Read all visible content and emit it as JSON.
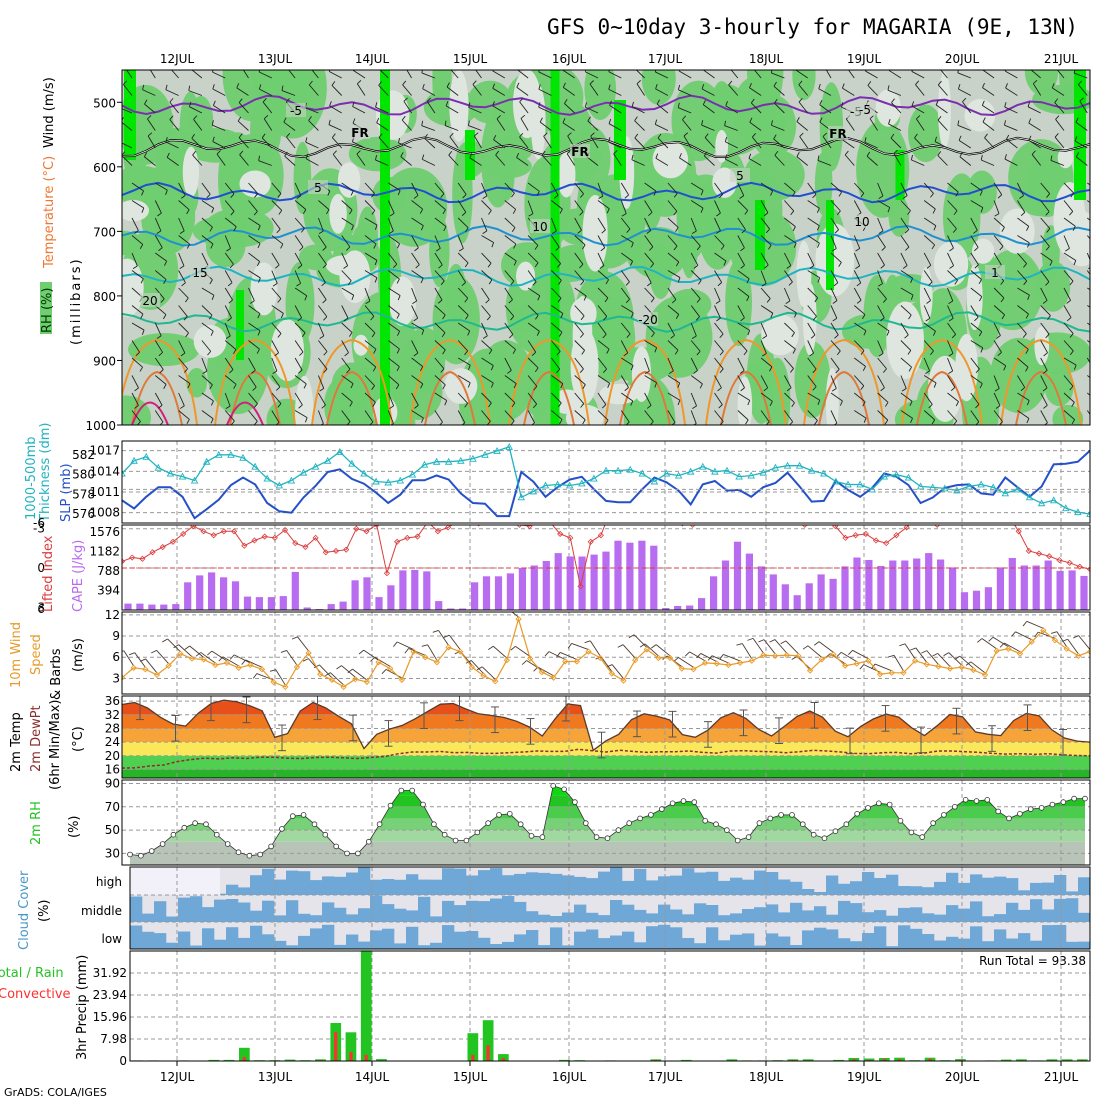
{
  "title": "GFS 0~10day 3-hourly for MAGARIA (9E, 13N)",
  "credit": "GrADS: COLA/IGES",
  "run_total_label": "Run Total = 93.38",
  "dates": [
    "12JUL",
    "13JUL",
    "14JUL",
    "15JUL",
    "16JUL",
    "17JUL",
    "18JUL",
    "19JUL",
    "20JUL",
    "21JUL"
  ],
  "colors": {
    "rh_light": "#c8d2c8",
    "rh_mid": "#6fce6f",
    "rh_dark": "#00e600",
    "slp": "#2450c8",
    "thickness": "#20b4c0",
    "lifted": "#dc3c3c",
    "cape": "#b86cf0",
    "wind": "#e89a28",
    "temp_fill": "#f0781e",
    "dewpt": "#8b2e2e",
    "rh2m": "#22c422",
    "cloud": "#6fa8d6",
    "cloud_bg": "#e4e4ea",
    "precip_total": "#22c422",
    "precip_conv": "#ff3030"
  },
  "panel_labels": {
    "upper": [
      "RH (%)",
      "Temperature (°C)",
      "Wind (m/s)",
      "(millibars)"
    ],
    "slp": [
      "Thickness (dm)",
      "1000-500mb",
      "SLP (mb)"
    ],
    "cape": [
      "Lifted Index",
      "CAPE (J/kg)"
    ],
    "wind10": [
      "10m Wind",
      "Speed",
      "& Barbs",
      "(m/s)"
    ],
    "temp2m": [
      "2m Temp",
      "2m DewPt",
      "(6hr Min/Max)",
      "(°C)"
    ],
    "rh2m": [
      "2m RH",
      "(%)"
    ],
    "cloud": [
      "Cloud Cover",
      "(%)"
    ],
    "precip": [
      "Total / Rain",
      "Convective",
      "3hr Precip (mm)"
    ]
  },
  "upper_ticks": [
    "500",
    "600",
    "700",
    "800",
    "900",
    "1000"
  ],
  "upper_isotherms": [
    "-5",
    "FR",
    "FR",
    "FR",
    "-5",
    "-5",
    "5",
    "5",
    "10",
    "10",
    "15",
    "1",
    "20",
    "-20"
  ],
  "cloud_levels": [
    "high",
    "middle",
    "low"
  ],
  "chart_data": [
    {
      "type": "heatmap",
      "name": "upper-air",
      "y_unit": "millibars",
      "ylim": [
        1000,
        450
      ],
      "isotherms_C": [
        -5,
        0,
        5,
        10,
        15,
        20
      ],
      "isotherm_levels_mb": [
        505,
        570,
        640,
        707,
        770,
        840
      ]
    },
    {
      "type": "line",
      "name": "slp-thickness",
      "ylim_slp": [
        1008,
        1017
      ],
      "yticks_slp": [
        1008,
        1011,
        1014,
        1017
      ],
      "yticks_thickness": [
        576,
        578,
        580,
        582
      ],
      "series": [
        {
          "name": "SLP",
          "values": [
            1009.8,
            1008.6,
            1010.3,
            1011.7,
            1011.7,
            1010.3,
            1007.2,
            1008.5,
            1009.9,
            1012,
            1013.1,
            1012.1,
            1009.4,
            1008.2,
            1008,
            1010.2,
            1011.9,
            1013.9,
            1014.3,
            1012.9,
            1012.2,
            1010.9,
            1009.4,
            1010.6,
            1012.7,
            1012.7,
            1013.4,
            1012.8,
            1010.8,
            1009.4,
            1009.3,
            1007.5,
            1007.5,
            1013.9,
            1012.5,
            1010.3,
            1011.7,
            1012.8,
            1013.2,
            1011.4,
            1009.7,
            1009.5,
            1009.5,
            1011.4,
            1013.1,
            1012.4,
            1011.2,
            1009.2,
            1012.1,
            1012.6,
            1011.2,
            1011.3,
            1010.3,
            1011.7,
            1012.3,
            1013.8,
            1011.8,
            1009.6,
            1009.7,
            1012.6,
            1011.3,
            1010.3,
            1011.6,
            1013.7,
            1013.2,
            1012,
            1009.4,
            1010.2,
            1011.6,
            1012,
            1012.1,
            1010.8,
            1010.6,
            1013.1,
            1011.7,
            1010.3,
            1011.8,
            1015,
            1015.1,
            1015.4,
            1017
          ]
        },
        {
          "name": "Thickness",
          "values": [
            580.1,
            581.4,
            581.8,
            580.7,
            580.1,
            579.8,
            579.4,
            581.3,
            582,
            582,
            581.7,
            580.8,
            579.6,
            578.9,
            579.4,
            580.2,
            580.8,
            581.4,
            582.3,
            581.1,
            580.1,
            579.3,
            579.2,
            579.4,
            580,
            581,
            581.3,
            581.3,
            581.4,
            581.6,
            582,
            582.4,
            582.8,
            577.7,
            578.3,
            578.9,
            579,
            578.9,
            579.1,
            579.6,
            580.4,
            580.4,
            580.5,
            580.1,
            579.3,
            580.1,
            579.9,
            580.3,
            580.8,
            580.3,
            580.4,
            579.8,
            579.9,
            580.2,
            580.7,
            580.9,
            580.9,
            580.4,
            580.1,
            579.3,
            579,
            579,
            578.5,
            579.8,
            580,
            579.7,
            578.8,
            578.7,
            578.6,
            578.4,
            578.8,
            579,
            578.7,
            578.1,
            578.5,
            577.7,
            577.1,
            577.4,
            576.6,
            576.2,
            576
          ]
        }
      ]
    },
    {
      "type": "bar",
      "name": "cape-lifted-index",
      "yticks_cape": [
        394,
        788,
        1182,
        1576
      ],
      "yticks_li": [
        6,
        3,
        0,
        -3,
        -6
      ],
      "series": [
        {
          "name": "CAPE",
          "values": [
            130,
            130,
            110,
            110,
            120,
            560,
            700,
            760,
            660,
            580,
            270,
            260,
            260,
            280,
            770,
            50,
            20,
            120,
            170,
            600,
            660,
            260,
            500,
            800,
            810,
            780,
            180,
            30,
            30,
            560,
            680,
            680,
            740,
            850,
            900,
            990,
            1150,
            1080,
            1080,
            1120,
            1180,
            1400,
            1360,
            1400,
            1300,
            40,
            80,
            90,
            240,
            680,
            1000,
            1380,
            1140,
            880,
            720,
            520,
            300,
            540,
            720,
            630,
            880,
            1060,
            1010,
            890,
            1000,
            1000,
            1040,
            1150,
            1020,
            860,
            360,
            390,
            460,
            860,
            1050,
            900,
            900,
            1000,
            790,
            800,
            690
          ]
        },
        {
          "name": "Lifted Index",
          "values": [
            -0.5,
            -0.8,
            -0.7,
            -1.2,
            -1.6,
            -2.0,
            -2.6,
            -3.2,
            -2.8,
            -2.5,
            -2.8,
            -2.8,
            -1.7,
            -2.1,
            -2.4,
            -2.3,
            -2.9,
            -1.9,
            -1.6,
            -2.3,
            -1.2,
            -1.3,
            -1.4,
            -3.0,
            -2.8,
            -3.3,
            0.4,
            -2.0,
            -2.3,
            -2.4,
            -3.5,
            -2.8,
            -3.1,
            -3.6,
            -3.6,
            -3.4,
            -4.3,
            -4.5,
            -3.5,
            -3.3,
            -3.2,
            -3.7,
            -3.5,
            -2.6,
            -2.3,
            1.4,
            -2.0,
            -2.5,
            -4.5,
            -4.5,
            -4.1,
            -4.2,
            -4.4,
            -4.4,
            -4.0,
            -3.4,
            -3.3,
            -4.4,
            -4.4,
            -3.7,
            -4.2,
            -3.9,
            -4.4,
            -4.5,
            -4.2,
            -3.8,
            -3.7,
            -3.3,
            -3.8,
            -4.3,
            -3.2,
            -2.3,
            -2.5,
            -2.6,
            -2.1,
            -1.9,
            -2.5,
            -3.1,
            -3.9,
            -3.9,
            -3.3,
            -3.9,
            -4.3,
            -4.4,
            -4.6,
            -4.0,
            -3.8,
            -4.0,
            -2.8,
            -1.3,
            -1.1,
            -0.9,
            -0.6,
            -0.4,
            -0.1,
            0.1
          ]
        }
      ]
    },
    {
      "type": "line",
      "name": "10m-wind",
      "y_unit": "m/s",
      "yticks": [
        3,
        6,
        9,
        12
      ],
      "series": [
        {
          "name": "Speed",
          "values": [
            3.1,
            4.5,
            4.3,
            3.5,
            4.8,
            6.5,
            5.8,
            5.7,
            4.9,
            5.2,
            4.5,
            4.9,
            4.3,
            2.5,
            1.8,
            4.6,
            6.6,
            3.6,
            2.8,
            1.8,
            2.9,
            2.5,
            5.3,
            4.4,
            2.8,
            6.8,
            6,
            5.3,
            7.4,
            6.8,
            4.6,
            3.4,
            2.6,
            5.6,
            11.4,
            5.8,
            3.9,
            3.1,
            5.4,
            5.4,
            6.8,
            5.9,
            3.7,
            2.7,
            5.6,
            7.1,
            5.9,
            5.9,
            4.4,
            4.3,
            5.2,
            5.1,
            4.9,
            5.2,
            5.5,
            6.3,
            6.2,
            6.3,
            6.2,
            4.1,
            5.7,
            6.4,
            4.8,
            5.1,
            5.5,
            3.6,
            3.8,
            3.8,
            5.5,
            5,
            4.7,
            4.4,
            4.6,
            4.2,
            3.5,
            6.9,
            7.2,
            6.5,
            8.2,
            9.8,
            8.4,
            7.2,
            6.2,
            6.8
          ]
        }
      ]
    },
    {
      "type": "area",
      "name": "2m-temperature",
      "y_unit": "°C",
      "yticks": [
        16,
        20,
        24,
        28,
        32,
        36
      ],
      "series": [
        {
          "name": "2m Temp",
          "values": [
            35,
            35.6,
            34,
            31.3,
            29.3,
            28.7,
            32.5,
            35.3,
            36.3,
            35.8,
            34.7,
            33.2,
            25.4,
            26.5,
            33.1,
            35.6,
            34,
            31.6,
            29.4,
            22.1,
            26.3,
            27.8,
            28.9,
            30.8,
            33,
            35.1,
            35.3,
            33.7,
            32.3,
            31.8,
            31.2,
            30.1,
            28.4,
            25.8,
            30.8,
            35.2,
            34.7,
            21.6,
            24.4,
            26.3,
            30.6,
            32.3,
            31.6,
            30.5,
            26.2,
            25.4,
            27.5,
            31.1,
            32.6,
            30.9,
            27.7,
            25.8,
            28.6,
            31.5,
            33.1,
            31.3,
            27.2,
            25.6,
            28.6,
            30.8,
            32.2,
            31.3,
            28.2,
            25.9,
            28.8,
            32.1,
            31.4,
            27,
            26.3,
            25.9,
            30.3,
            32.4,
            31.7,
            27.6,
            25.2,
            24.3,
            24
          ]
        },
        {
          "name": "2m DewPt",
          "values": [
            16.4,
            16.5,
            17,
            17.3,
            18.3,
            18.9,
            19.3,
            19.1,
            19.4,
            19.2,
            19.6,
            19.6,
            19.3,
            19.2,
            19.5,
            19.6,
            19.4,
            19.2,
            19.5,
            19.8,
            20.6,
            21.1,
            21.1,
            21.3,
            20.9,
            21,
            20.7,
            20.7,
            20.9,
            21.1,
            21.4,
            21.3,
            21.3,
            21.9,
            21.5,
            21.1,
            21.6,
            21.3,
            21,
            21.2,
            21.2,
            21.4,
            21,
            20.8,
            21.4,
            21.5,
            21.3,
            21.2,
            20.9,
            21.2,
            21.6,
            21.4,
            21.1,
            20.7,
            20.6,
            20.9,
            21,
            20.6,
            20.8,
            21.4,
            21.4,
            21.2,
            21,
            20.7,
            20.5,
            20.6,
            20.4,
            20.6,
            20.3,
            20.1,
            20
          ]
        }
      ]
    },
    {
      "type": "area",
      "name": "2m-rh",
      "y_unit": "%",
      "yticks": [
        30,
        50,
        70,
        90
      ],
      "series": [
        {
          "name": "2m RH",
          "values": [
            29,
            28,
            32,
            38,
            46,
            52,
            56,
            55,
            46,
            38,
            31,
            28,
            29,
            36,
            51,
            62,
            63,
            55,
            46,
            36,
            30,
            30,
            40,
            55,
            71,
            84,
            84,
            72,
            55,
            46,
            41,
            41,
            48,
            56,
            63,
            64,
            55,
            45,
            44,
            88,
            85,
            74,
            56,
            44,
            43,
            50,
            56,
            60,
            63,
            68,
            73,
            75,
            74,
            58,
            55,
            50,
            41,
            44,
            56,
            60,
            63,
            63,
            55,
            46,
            43,
            49,
            55,
            64,
            69,
            73,
            72,
            58,
            48,
            44,
            56,
            63,
            70,
            76,
            75,
            76,
            66,
            60,
            64,
            68,
            69,
            72,
            74,
            77,
            77
          ]
        }
      ]
    },
    {
      "type": "heatmap",
      "name": "cloud-cover",
      "levels": [
        "high",
        "middle",
        "low"
      ]
    },
    {
      "type": "bar",
      "name": "3hr-precip",
      "y_unit": "mm",
      "ylim": [
        0,
        39.9
      ],
      "yticks": [
        0,
        7.98,
        15.96,
        23.94,
        31.92
      ],
      "run_total_mm": 93.38,
      "series": [
        {
          "name": "Total",
          "values": [
            0.2,
            0.2,
            0.1,
            0.2,
            0.1,
            0.4,
            0.4,
            4.8,
            0.3,
            0.3,
            0.5,
            0.3,
            0.6,
            13.8,
            10.4,
            40.1,
            0.7,
            0.1,
            0.1,
            0.1,
            0.1,
            0.1,
            10.1,
            14.8,
            2.5,
            0.1,
            0.1,
            0.1,
            0.4,
            0.3,
            0.1,
            0.2,
            0.1,
            0.1,
            0.6,
            0.1,
            0.4,
            0.1,
            0.1,
            0.6,
            0.2,
            0.2,
            0.3,
            0.6,
            0.6,
            0.1,
            0.4,
            1.1,
            0.9,
            1.1,
            1.2,
            0.3,
            1.2,
            0.3,
            0.7,
            0.1,
            0.2,
            0.5,
            0.6,
            0.2,
            0.6,
            0.6,
            0.6
          ]
        },
        {
          "name": "Convective",
          "values": [
            0,
            0,
            0,
            0,
            0,
            0.1,
            0.1,
            1.4,
            0,
            0,
            0.2,
            0,
            0.3,
            10.5,
            3.3,
            2.2,
            0,
            0,
            0,
            0,
            0,
            0,
            2.2,
            5.7,
            1.1,
            0,
            0,
            0,
            0.1,
            0,
            0,
            0,
            0,
            0,
            0.4,
            0,
            0.1,
            0,
            0,
            0.3,
            0,
            0,
            0.1,
            0.4,
            0.3,
            0,
            0.2,
            0.6,
            0.4,
            0.8,
            0.6,
            0,
            0.8,
            0,
            0.4,
            0,
            0,
            0.2,
            0.3,
            0,
            0.3,
            0.3,
            0.4
          ]
        }
      ]
    }
  ]
}
